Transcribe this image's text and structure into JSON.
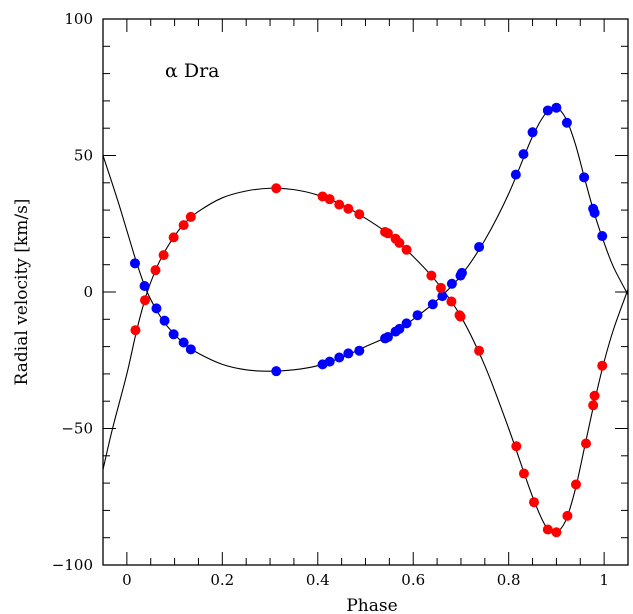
{
  "chart_data": {
    "type": "scatter",
    "title": "",
    "annotation": "α Dra",
    "xlabel": "Phase",
    "ylabel": "Radial velocity [km/s]",
    "xlim": [
      -0.05,
      1.05
    ],
    "ylim": [
      -100,
      100
    ],
    "xticks": [
      0,
      0.2,
      0.4,
      0.6,
      0.8,
      1
    ],
    "xtick_labels": [
      "0",
      "0.2",
      "0.4",
      "0.6",
      "0.8",
      "1"
    ],
    "yticks": [
      -100,
      -50,
      0,
      50,
      100
    ],
    "ytick_labels": [
      "−100",
      "−50",
      "0",
      "50",
      "100"
    ],
    "grid": false,
    "legend": "none",
    "series": [
      {
        "color": "#0000ff",
        "points": [
          [
            0.017,
            10.5
          ],
          [
            0.037,
            2.2
          ],
          [
            0.062,
            -6.0
          ],
          [
            0.079,
            -10.5
          ],
          [
            0.098,
            -15.5
          ],
          [
            0.119,
            -18.5
          ],
          [
            0.134,
            -21.0
          ],
          [
            0.313,
            -29.0
          ],
          [
            0.41,
            -26.5
          ],
          [
            0.425,
            -25.5
          ],
          [
            0.445,
            -24.0
          ],
          [
            0.464,
            -22.5
          ],
          [
            0.487,
            -21.5
          ],
          [
            0.541,
            -17.0
          ],
          [
            0.547,
            -16.5
          ],
          [
            0.563,
            -14.5
          ],
          [
            0.571,
            -13.5
          ],
          [
            0.586,
            -11.5
          ],
          [
            0.609,
            -8.5
          ],
          [
            0.641,
            -4.5
          ],
          [
            0.661,
            -1.5
          ],
          [
            0.681,
            3.0
          ],
          [
            0.699,
            6.0
          ],
          [
            0.702,
            7.0
          ],
          [
            0.738,
            16.5
          ],
          [
            0.815,
            43.0
          ],
          [
            0.831,
            50.5
          ],
          [
            0.85,
            58.5
          ],
          [
            0.882,
            66.5
          ],
          [
            0.9,
            67.5
          ],
          [
            0.922,
            62.0
          ],
          [
            0.958,
            42.0
          ],
          [
            0.977,
            30.5
          ],
          [
            0.98,
            29.0
          ],
          [
            0.996,
            20.5
          ]
        ]
      },
      {
        "color": "#ff0000",
        "points": [
          [
            0.018,
            -14.0
          ],
          [
            0.038,
            -3.0
          ],
          [
            0.06,
            8.0
          ],
          [
            0.077,
            13.5
          ],
          [
            0.098,
            20.0
          ],
          [
            0.119,
            24.5
          ],
          [
            0.134,
            27.5
          ],
          [
            0.313,
            38.0
          ],
          [
            0.41,
            35.0
          ],
          [
            0.425,
            34.0
          ],
          [
            0.445,
            32.0
          ],
          [
            0.464,
            30.5
          ],
          [
            0.487,
            28.5
          ],
          [
            0.541,
            22.0
          ],
          [
            0.547,
            21.5
          ],
          [
            0.563,
            19.5
          ],
          [
            0.571,
            18.0
          ],
          [
            0.586,
            15.5
          ],
          [
            0.638,
            6.0
          ],
          [
            0.658,
            1.5
          ],
          [
            0.68,
            -3.5
          ],
          [
            0.697,
            -8.5
          ],
          [
            0.699,
            -9.0
          ],
          [
            0.738,
            -21.5
          ],
          [
            0.816,
            -56.5
          ],
          [
            0.832,
            -66.5
          ],
          [
            0.853,
            -77.0
          ],
          [
            0.882,
            -87.0
          ],
          [
            0.9,
            -88.0
          ],
          [
            0.923,
            -82.0
          ],
          [
            0.941,
            -70.5
          ],
          [
            0.962,
            -55.5
          ],
          [
            0.977,
            -41.5
          ],
          [
            0.98,
            -38.0
          ],
          [
            0.996,
            -27.0
          ]
        ]
      }
    ],
    "curves": [
      {
        "color": "#000000",
        "points": [
          [
            -0.05,
            50.0
          ],
          [
            -0.02,
            34.0
          ],
          [
            0.0,
            22.5
          ],
          [
            0.02,
            11.0
          ],
          [
            0.04,
            1.0
          ],
          [
            0.06,
            -6.0
          ],
          [
            0.08,
            -11.5
          ],
          [
            0.1,
            -15.5
          ],
          [
            0.12,
            -19.0
          ],
          [
            0.15,
            -22.5
          ],
          [
            0.2,
            -26.5
          ],
          [
            0.25,
            -28.5
          ],
          [
            0.3,
            -29.0
          ],
          [
            0.35,
            -28.5
          ],
          [
            0.4,
            -27.0
          ],
          [
            0.45,
            -24.0
          ],
          [
            0.5,
            -20.0
          ],
          [
            0.55,
            -16.0
          ],
          [
            0.6,
            -10.0
          ],
          [
            0.65,
            -3.0
          ],
          [
            0.7,
            6.0
          ],
          [
            0.75,
            19.0
          ],
          [
            0.8,
            36.0
          ],
          [
            0.85,
            57.0
          ],
          [
            0.88,
            66.0
          ],
          [
            0.9,
            67.5
          ],
          [
            0.92,
            63.5
          ],
          [
            0.94,
            54.0
          ],
          [
            0.96,
            41.0
          ],
          [
            0.98,
            28.5
          ],
          [
            1.0,
            18.0
          ],
          [
            1.02,
            9.0
          ],
          [
            1.05,
            -1.0
          ]
        ]
      },
      {
        "color": "#000000",
        "points": [
          [
            -0.05,
            -65.0
          ],
          [
            -0.03,
            -50.0
          ],
          [
            0.0,
            -30.0
          ],
          [
            0.02,
            -14.5
          ],
          [
            0.04,
            -1.5
          ],
          [
            0.06,
            8.0
          ],
          [
            0.08,
            15.0
          ],
          [
            0.1,
            20.5
          ],
          [
            0.12,
            25.0
          ],
          [
            0.15,
            29.5
          ],
          [
            0.2,
            34.5
          ],
          [
            0.25,
            37.0
          ],
          [
            0.3,
            38.0
          ],
          [
            0.35,
            37.5
          ],
          [
            0.4,
            35.5
          ],
          [
            0.45,
            32.0
          ],
          [
            0.5,
            27.0
          ],
          [
            0.55,
            21.0
          ],
          [
            0.6,
            13.0
          ],
          [
            0.65,
            3.5
          ],
          [
            0.7,
            -9.0
          ],
          [
            0.75,
            -27.0
          ],
          [
            0.8,
            -50.0
          ],
          [
            0.85,
            -75.0
          ],
          [
            0.88,
            -86.5
          ],
          [
            0.9,
            -88.0
          ],
          [
            0.92,
            -83.5
          ],
          [
            0.94,
            -72.0
          ],
          [
            0.96,
            -56.0
          ],
          [
            0.98,
            -40.0
          ],
          [
            1.0,
            -25.5
          ],
          [
            1.02,
            -13.5
          ],
          [
            1.05,
            1.0
          ]
        ]
      }
    ]
  }
}
